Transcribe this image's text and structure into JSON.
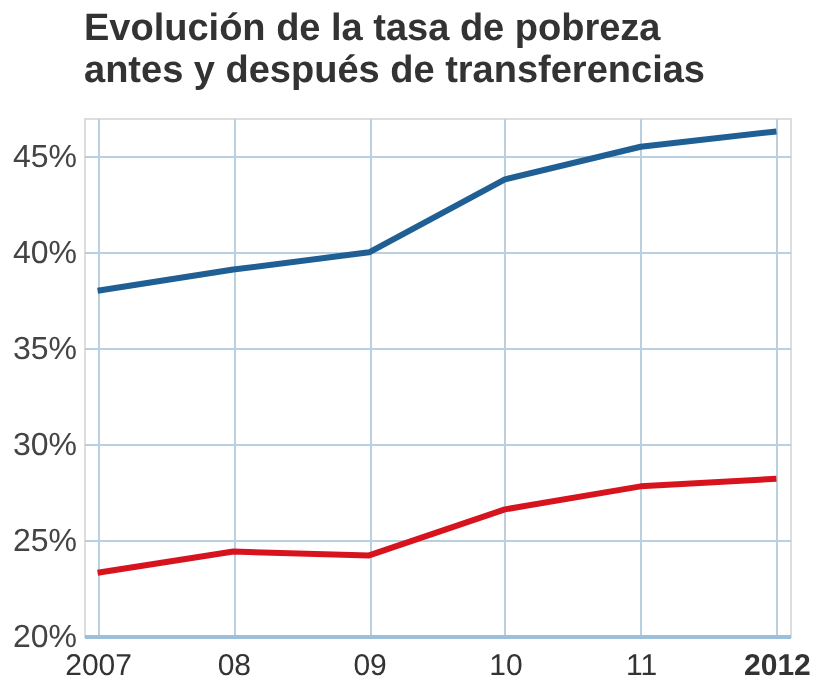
{
  "chart_data": {
    "type": "line",
    "title": [
      "Evolución de la tasa de pobreza",
      "antes y después de transferencias"
    ],
    "categories": [
      "2007",
      "08",
      "09",
      "10",
      "11",
      "2012"
    ],
    "series": [
      {
        "color": "#1f5f93",
        "values": [
          38.0,
          39.1,
          40.0,
          43.8,
          45.5,
          46.3
        ]
      },
      {
        "color": "#d7141e",
        "values": [
          23.3,
          24.4,
          24.2,
          26.6,
          27.8,
          28.2
        ]
      }
    ],
    "ylim": [
      20,
      47
    ],
    "yticks": [
      {
        "value": 20,
        "label": "20%"
      },
      {
        "value": 25,
        "label": "25%"
      },
      {
        "value": 30,
        "label": "30%"
      },
      {
        "value": 35,
        "label": "35%"
      },
      {
        "value": 40,
        "label": "40%"
      },
      {
        "value": 45,
        "label": "45%"
      }
    ],
    "grid": true,
    "legend": false,
    "marker": "none",
    "line_style": "solid"
  }
}
